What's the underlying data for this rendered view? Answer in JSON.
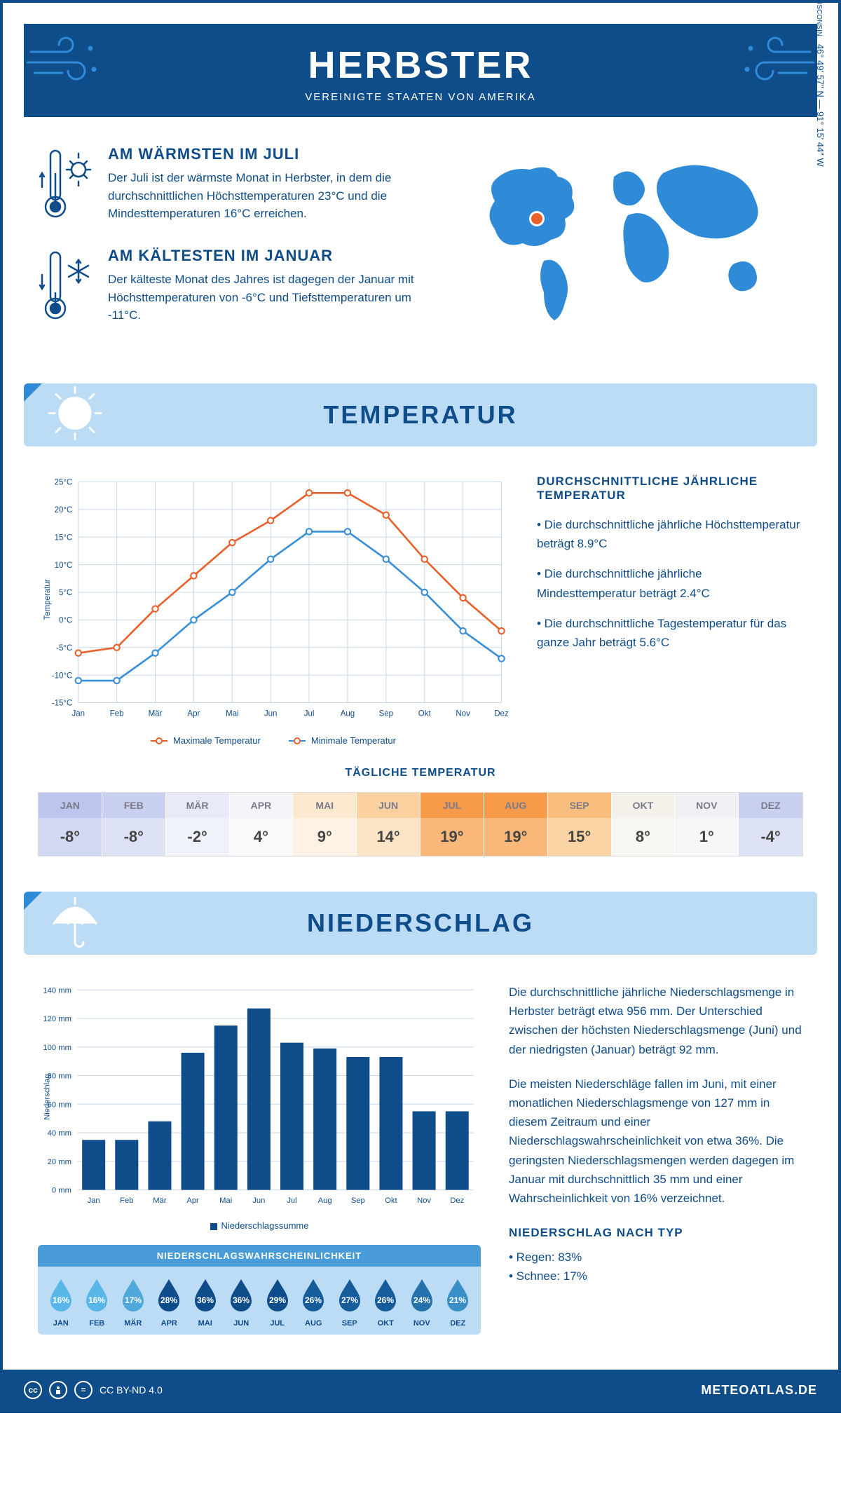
{
  "header": {
    "title": "HERBSTER",
    "subtitle": "VEREINIGTE STAATEN VON AMERIKA"
  },
  "coords": "46° 49' 57\" N — 91° 15' 44\" W",
  "state": "WISCONSIN",
  "facts": {
    "warm": {
      "title": "AM WÄRMSTEN IM JULI",
      "text": "Der Juli ist der wärmste Monat in Herbster, in dem die durchschnittlichen Höchsttemperaturen 23°C und die Mindesttemperaturen 16°C erreichen."
    },
    "cold": {
      "title": "AM KÄLTESTEN IM JANUAR",
      "text": "Der kälteste Monat des Jahres ist dagegen der Januar mit Höchsttemperaturen von -6°C und Tiefsttemperaturen um -11°C."
    }
  },
  "sections": {
    "temp": "TEMPERATUR",
    "precip": "NIEDERSCHLAG"
  },
  "tempChart": {
    "months": [
      "Jan",
      "Feb",
      "Mär",
      "Apr",
      "Mai",
      "Jun",
      "Jul",
      "Aug",
      "Sep",
      "Okt",
      "Nov",
      "Dez"
    ],
    "max": [
      -6,
      -5,
      2,
      8,
      14,
      18,
      23,
      23,
      19,
      11,
      4,
      -2
    ],
    "min": [
      -11,
      -11,
      -6,
      0,
      5,
      11,
      16,
      16,
      11,
      5,
      -2,
      -7
    ],
    "ylim": [
      -15,
      25
    ],
    "ytick_step": 5,
    "ylabel": "Temperatur",
    "max_color": "#e8612b",
    "min_color": "#3a8fd6",
    "grid_color": "#c8d8e8",
    "legend_max": "Maximale Temperatur",
    "legend_min": "Minimale Temperatur"
  },
  "tempInfo": {
    "title": "DURCHSCHNITTLICHE JÄHRLICHE TEMPERATUR",
    "bullets": [
      "• Die durchschnittliche jährliche Höchsttemperatur beträgt 8.9°C",
      "• Die durchschnittliche jährliche Mindesttemperatur beträgt 2.4°C",
      "• Die durchschnittliche Tagestemperatur für das ganze Jahr beträgt 5.6°C"
    ]
  },
  "dailyTemp": {
    "title": "TÄGLICHE TEMPERATUR",
    "months": [
      "JAN",
      "FEB",
      "MÄR",
      "APR",
      "MAI",
      "JUN",
      "JUL",
      "AUG",
      "SEP",
      "OKT",
      "NOV",
      "DEZ"
    ],
    "values": [
      "-8°",
      "-8°",
      "-2°",
      "4°",
      "9°",
      "14°",
      "19°",
      "19°",
      "15°",
      "8°",
      "1°",
      "-4°"
    ],
    "head_colors": [
      "#bcc5ed",
      "#c9d0ef",
      "#e8ebf7",
      "#f5f5f9",
      "#fce9cf",
      "#fbd29f",
      "#f79b4a",
      "#f79b4a",
      "#f9bd7d",
      "#f4f1ea",
      "#f1f1f5",
      "#c9d0ef"
    ],
    "val_colors": [
      "#d2d8f2",
      "#dde1f4",
      "#f0f2fa",
      "#fafafc",
      "#fdf2e3",
      "#fce5c6",
      "#f9b77a",
      "#f9b77a",
      "#fbd4a5",
      "#f9f7f2",
      "#f7f7fa",
      "#dde1f4"
    ]
  },
  "precipChart": {
    "months": [
      "Jan",
      "Feb",
      "Mär",
      "Apr",
      "Mai",
      "Jun",
      "Jul",
      "Aug",
      "Sep",
      "Okt",
      "Nov",
      "Dez"
    ],
    "values": [
      35,
      35,
      48,
      96,
      115,
      127,
      103,
      99,
      93,
      93,
      55,
      55
    ],
    "ylim": [
      0,
      140
    ],
    "ytick_step": 20,
    "ylabel": "Niederschlag",
    "bar_color": "#0f4c8a",
    "grid_color": "#c8d8e8",
    "legend": "Niederschlagssumme"
  },
  "precipText": {
    "p1": "Die durchschnittliche jährliche Niederschlagsmenge in Herbster beträgt etwa 956 mm. Der Unterschied zwischen der höchsten Niederschlagsmenge (Juni) und der niedrigsten (Januar) beträgt 92 mm.",
    "p2": "Die meisten Niederschläge fallen im Juni, mit einer monatlichen Niederschlagsmenge von 127 mm in diesem Zeitraum und einer Niederschlagswahrscheinlichkeit von etwa 36%. Die geringsten Niederschlagsmengen werden dagegen im Januar mit durchschnittlich 35 mm und einer Wahrscheinlichkeit von 16% verzeichnet.",
    "type_title": "NIEDERSCHLAG NACH TYP",
    "rain": "• Regen: 83%",
    "snow": "• Schnee: 17%"
  },
  "probability": {
    "title": "NIEDERSCHLAGSWAHRSCHEINLICHKEIT",
    "months": [
      "JAN",
      "FEB",
      "MÄR",
      "APR",
      "MAI",
      "JUN",
      "JUL",
      "AUG",
      "SEP",
      "OKT",
      "NOV",
      "DEZ"
    ],
    "values": [
      "16%",
      "16%",
      "17%",
      "28%",
      "36%",
      "36%",
      "29%",
      "26%",
      "27%",
      "26%",
      "24%",
      "21%"
    ],
    "colors": [
      "#58b6e9",
      "#58b6e9",
      "#4fa8da",
      "#0f4c8a",
      "#0f4c8a",
      "#0f4c8a",
      "#0f4c8a",
      "#165c9b",
      "#165c9b",
      "#165c9b",
      "#2471ab",
      "#3a8fc6"
    ]
  },
  "footer": {
    "license": "CC BY-ND 4.0",
    "site": "METEOATLAS.DE"
  },
  "colors": {
    "brand": "#0f4c8a",
    "accent": "#2f8ad8",
    "light": "#bcdbf5"
  }
}
